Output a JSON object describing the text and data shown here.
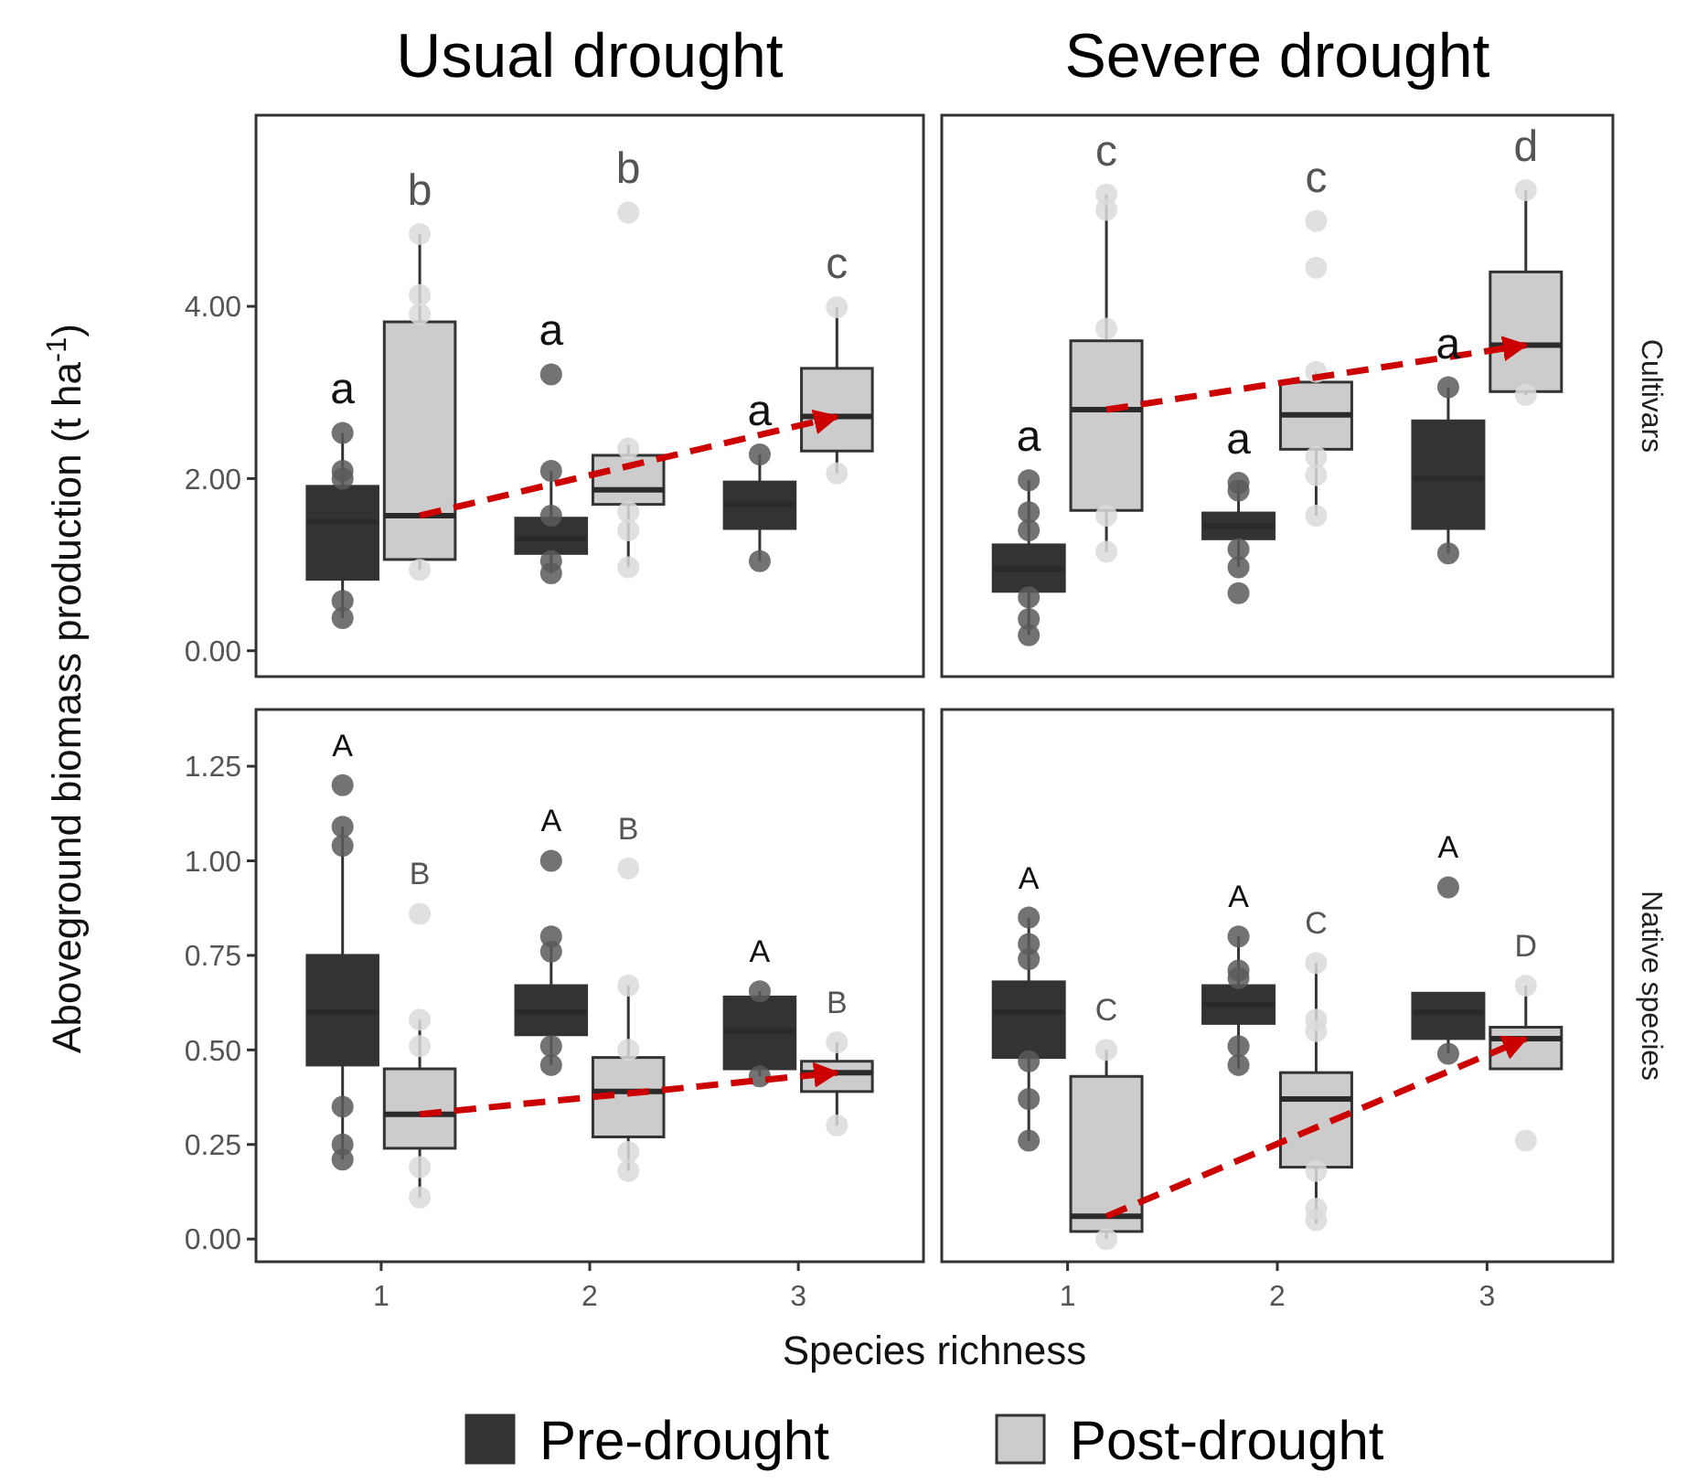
{
  "chart_data": [
    {
      "type": "box",
      "title": "Usual drought",
      "ylabel": "Aboveground biomass production (t ha$^{-1}$)",
      "legend": "bottom",
      "tick_labels": "y",
      "categories": [
        "1",
        "2",
        "3"
      ],
      "ylim": [
        -0.3,
        6.22
      ],
      "yticks": [
        {
          "value": 0,
          "label": "0.00"
        },
        {
          "value": 2,
          "label": "2.00"
        },
        {
          "value": 4,
          "label": "4.00"
        }
      ],
      "series": [
        {
          "type": "box",
          "name": "Pre-drought",
          "color": "#333333",
          "value_labels": [
            "a",
            "a",
            "a"
          ],
          "boxes": [
            {
              "low": 0.38,
              "q1": 0.83,
              "median": 1.5,
              "q3": 1.91,
              "high": 2.53
            },
            {
              "low": 0.9,
              "q1": 1.13,
              "median": 1.3,
              "q3": 1.54,
              "high": 2.09
            },
            {
              "low": 1.04,
              "q1": 1.42,
              "median": 1.7,
              "q3": 1.96,
              "high": 2.28
            }
          ]
        },
        {
          "type": "box",
          "name": "Post-drought",
          "color": "#cccccc",
          "value_labels": [
            "b",
            "b",
            "c"
          ],
          "boxes": [
            {
              "low": 0.94,
              "q1": 1.06,
              "median": 1.57,
              "q3": 3.82,
              "high": 4.84
            },
            {
              "low": 0.97,
              "q1": 1.7,
              "median": 1.87,
              "q3": 2.27,
              "high": 2.39
            },
            {
              "low": 2.06,
              "q1": 2.32,
              "median": 2.72,
              "q3": 3.28,
              "high": 3.99
            }
          ]
        },
        {
          "type": "scatter",
          "color": "#5a5a5a",
          "x": [
            "1",
            "1",
            "1",
            "1",
            "1",
            "2",
            "2",
            "2",
            "2",
            "2",
            "3",
            "3"
          ],
          "values": [
            2.53,
            2.09,
            2.0,
            0.58,
            0.38,
            3.21,
            2.09,
            1.57,
            1.04,
            0.9,
            2.28,
            1.04
          ]
        },
        {
          "type": "scatter",
          "color": "#dadada",
          "x": [
            "1",
            "1",
            "1",
            "1",
            "2",
            "2",
            "2",
            "2",
            "2",
            "3",
            "3"
          ],
          "values": [
            4.84,
            4.13,
            3.91,
            0.94,
            5.09,
            2.35,
            1.61,
            1.4,
            0.97,
            3.99,
            2.06
          ]
        },
        {
          "type": "line",
          "color": "#cc0000",
          "line_style": "dashed",
          "marker": "none",
          "x": [
            "1",
            "3"
          ],
          "values": [
            1.57,
            2.72
          ]
        }
      ]
    },
    {
      "type": "box",
      "title": "Severe drought",
      "y2label": "Cultivars",
      "tick_labels": false,
      "categories": [
        "1",
        "2",
        "3"
      ],
      "ylim": [
        -0.3,
        6.22
      ],
      "series": [
        {
          "type": "box",
          "color": "#333333",
          "value_labels": [
            "a",
            "a",
            "a"
          ],
          "boxes": [
            {
              "low": 0.18,
              "q1": 0.69,
              "median": 0.95,
              "q3": 1.23,
              "high": 1.98
            },
            {
              "low": 0.97,
              "q1": 1.3,
              "median": 1.45,
              "q3": 1.6,
              "high": 1.95
            },
            {
              "low": 1.13,
              "q1": 1.42,
              "median": 2.0,
              "q3": 2.67,
              "high": 3.06
            }
          ]
        },
        {
          "type": "box",
          "color": "#cccccc",
          "value_labels": [
            "c",
            "c",
            "d"
          ],
          "boxes": [
            {
              "low": 1.15,
              "q1": 1.63,
              "median": 2.8,
              "q3": 3.6,
              "high": 5.3
            },
            {
              "low": 1.57,
              "q1": 2.34,
              "median": 2.74,
              "q3": 3.12,
              "high": 3.24
            },
            {
              "low": 2.97,
              "q1": 3.01,
              "median": 3.55,
              "q3": 4.4,
              "high": 5.35
            }
          ]
        },
        {
          "type": "scatter",
          "color": "#5a5a5a",
          "x": [
            "1",
            "1",
            "1",
            "1",
            "1",
            "1",
            "2",
            "2",
            "2",
            "2",
            "2",
            "3",
            "3"
          ],
          "values": [
            1.98,
            1.61,
            1.4,
            0.62,
            0.37,
            0.18,
            1.95,
            1.86,
            1.18,
            0.97,
            0.67,
            3.06,
            1.13
          ]
        },
        {
          "type": "scatter",
          "color": "#dadada",
          "x": [
            "1",
            "1",
            "1",
            "1",
            "1",
            "2",
            "2",
            "2",
            "2",
            "2",
            "2",
            "3",
            "3"
          ],
          "values": [
            5.3,
            5.12,
            3.74,
            1.57,
            1.15,
            4.99,
            4.45,
            3.24,
            2.25,
            2.04,
            1.57,
            5.35,
            2.97
          ]
        },
        {
          "type": "line",
          "color": "#cc0000",
          "line_style": "dashed",
          "marker": "none",
          "x": [
            "1",
            "3"
          ],
          "values": [
            2.8,
            3.55
          ]
        }
      ]
    },
    {
      "type": "box",
      "xlabel": "Species richness",
      "categories": [
        "1",
        "2",
        "3"
      ],
      "ylim": [
        -0.06,
        1.4
      ],
      "yticks": [
        {
          "value": 0,
          "label": "0.00"
        },
        {
          "value": 0.25,
          "label": "0.25"
        },
        {
          "value": 0.5,
          "label": "0.50"
        },
        {
          "value": 0.75,
          "label": "0.75"
        },
        {
          "value": 1,
          "label": "1.00"
        },
        {
          "value": 1.25,
          "label": "1.25"
        }
      ],
      "series": [
        {
          "type": "box",
          "color": "#333333",
          "value_labels": [
            "A",
            "A",
            "A"
          ],
          "boxes": [
            {
              "low": 0.21,
              "q1": 0.46,
              "median": 0.6,
              "q3": 0.75,
              "high": 1.09
            },
            {
              "low": 0.46,
              "q1": 0.54,
              "median": 0.6,
              "q3": 0.67,
              "high": 0.78
            },
            {
              "low": 0.43,
              "q1": 0.45,
              "median": 0.55,
              "q3": 0.64,
              "high": 0.655
            }
          ]
        },
        {
          "type": "box",
          "color": "#cccccc",
          "value_labels": [
            "B",
            "B",
            "B"
          ],
          "boxes": [
            {
              "low": 0.11,
              "q1": 0.24,
              "median": 0.33,
              "q3": 0.45,
              "high": 0.58
            },
            {
              "low": 0.18,
              "q1": 0.27,
              "median": 0.39,
              "q3": 0.48,
              "high": 0.67
            },
            {
              "low": 0.3,
              "q1": 0.39,
              "median": 0.44,
              "q3": 0.47,
              "high": 0.52
            }
          ]
        },
        {
          "type": "scatter",
          "color": "#5a5a5a",
          "x": [
            "1",
            "1",
            "1",
            "1",
            "1",
            "1",
            "2",
            "2",
            "2",
            "2",
            "2",
            "3",
            "3"
          ],
          "values": [
            1.2,
            1.09,
            1.04,
            0.35,
            0.25,
            0.21,
            1.0,
            0.8,
            0.76,
            0.51,
            0.46,
            0.655,
            0.43
          ]
        },
        {
          "type": "scatter",
          "color": "#dadada",
          "x": [
            "1",
            "1",
            "1",
            "1",
            "1",
            "2",
            "2",
            "2",
            "2",
            "2",
            "3",
            "3"
          ],
          "values": [
            0.86,
            0.58,
            0.51,
            0.19,
            0.11,
            0.98,
            0.67,
            0.5,
            0.23,
            0.18,
            0.52,
            0.3
          ]
        },
        {
          "type": "line",
          "color": "#cc0000",
          "line_style": "dashed",
          "marker": "none",
          "x": [
            "1",
            "3"
          ],
          "values": [
            0.33,
            0.44
          ]
        }
      ]
    },
    {
      "type": "box",
      "y2label": "Native species",
      "tick_labels": "x",
      "categories": [
        "1",
        "2",
        "3"
      ],
      "ylim": [
        -0.06,
        1.4
      ],
      "series": [
        {
          "type": "box",
          "color": "#333333",
          "value_labels": [
            "A",
            "A",
            "A"
          ],
          "boxes": [
            {
              "low": 0.26,
              "q1": 0.48,
              "median": 0.6,
              "q3": 0.68,
              "high": 0.85
            },
            {
              "low": 0.45,
              "q1": 0.57,
              "median": 0.62,
              "q3": 0.67,
              "high": 0.8
            },
            {
              "low": 0.49,
              "q1": 0.53,
              "median": 0.6,
              "q3": 0.65,
              "high": 0.65
            }
          ]
        },
        {
          "type": "box",
          "color": "#cccccc",
          "value_labels": [
            "C",
            "C",
            "D"
          ],
          "boxes": [
            {
              "low": 0.0,
              "q1": 0.02,
              "median": 0.06,
              "q3": 0.43,
              "high": 0.5
            },
            {
              "low": 0.04,
              "q1": 0.19,
              "median": 0.37,
              "q3": 0.44,
              "high": 0.73
            },
            {
              "low": 0.45,
              "q1": 0.45,
              "median": 0.53,
              "q3": 0.56,
              "high": 0.67
            }
          ]
        },
        {
          "type": "scatter",
          "color": "#5a5a5a",
          "x": [
            "1",
            "1",
            "1",
            "1",
            "1",
            "1",
            "2",
            "2",
            "2",
            "2",
            "2",
            "3",
            "3"
          ],
          "values": [
            0.85,
            0.78,
            0.74,
            0.47,
            0.37,
            0.26,
            0.8,
            0.71,
            0.69,
            0.51,
            0.46,
            0.93,
            0.49
          ]
        },
        {
          "type": "scatter",
          "color": "#dadada",
          "x": [
            "1",
            "1",
            "2",
            "2",
            "2",
            "2",
            "2",
            "2",
            "3",
            "3"
          ],
          "values": [
            0.5,
            0.0,
            0.73,
            0.58,
            0.55,
            0.18,
            0.08,
            0.05,
            0.67,
            0.26
          ]
        },
        {
          "type": "line",
          "color": "#cc0000",
          "line_style": "dashed",
          "marker": "none",
          "x": [
            "1",
            "3"
          ],
          "values": [
            0.06,
            0.53
          ]
        }
      ]
    }
  ]
}
